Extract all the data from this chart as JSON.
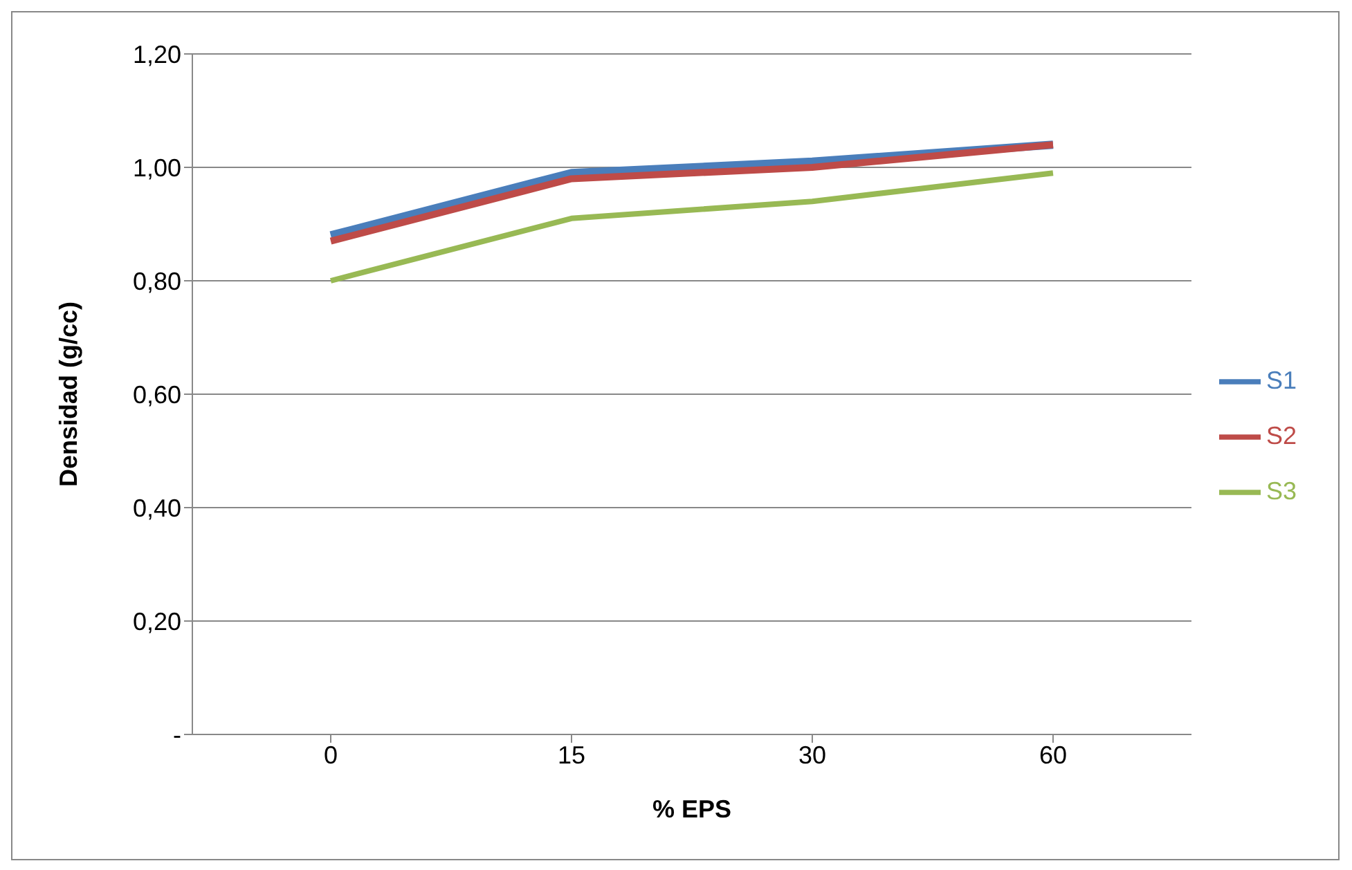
{
  "chart_data": {
    "type": "line",
    "xlabel": "% EPS",
    "ylabel": "Densidad (g/cc)",
    "categories": [
      "0",
      "15",
      "30",
      "60"
    ],
    "series": [
      {
        "name": "S1",
        "color": "#4a7ebb",
        "values": [
          0.88,
          0.99,
          1.01,
          1.04
        ]
      },
      {
        "name": "S2",
        "color": "#be4b48",
        "values": [
          0.87,
          0.98,
          1.0,
          1.04
        ]
      },
      {
        "name": "S3",
        "color": "#98b954",
        "values": [
          0.8,
          0.91,
          0.94,
          0.99
        ]
      }
    ],
    "ylim": [
      0,
      1.2
    ],
    "yticks": [
      {
        "value": 0,
        "label": "-"
      },
      {
        "value": 0.2,
        "label": "0,20"
      },
      {
        "value": 0.4,
        "label": "0,40"
      },
      {
        "value": 0.6,
        "label": "0,60"
      },
      {
        "value": 0.8,
        "label": "0,80"
      },
      {
        "value": 1,
        "label": "1,00"
      },
      {
        "value": 1.2,
        "label": "1,20"
      }
    ],
    "grid": "y",
    "legend": "right",
    "marker": "none",
    "line_style": "solid"
  }
}
